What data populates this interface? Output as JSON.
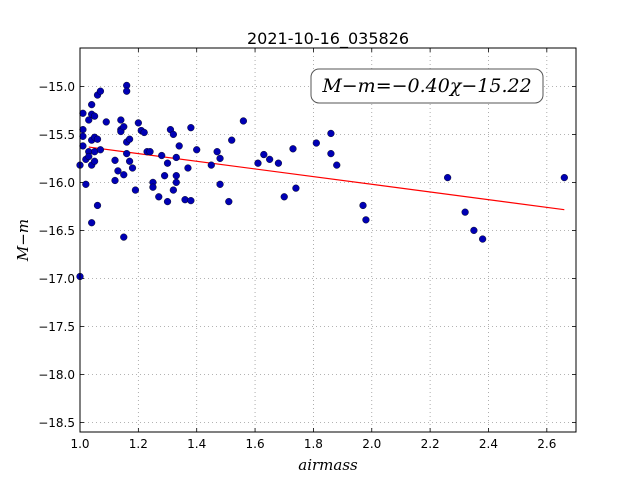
{
  "chart_data": {
    "type": "scatter",
    "title": "2021-10-16_035826",
    "xlabel": "airmass",
    "ylabel": "M−m",
    "xlim": [
      1.0,
      2.7
    ],
    "ylim": [
      -18.6,
      -14.6
    ],
    "y_inverted": true,
    "grid": true,
    "x_ticks": [
      1.0,
      1.2,
      1.4,
      1.6,
      1.8,
      2.0,
      2.2,
      2.4,
      2.6
    ],
    "x_tick_labels": [
      "1.0",
      "1.2",
      "1.4",
      "1.6",
      "1.8",
      "2.0",
      "2.2",
      "2.4",
      "2.6"
    ],
    "y_ticks": [
      -15.0,
      -15.5,
      -16.0,
      -16.5,
      -17.0,
      -17.5,
      -18.0,
      -18.5
    ],
    "y_tick_labels": [
      "−15.0",
      "−15.5",
      "−16.0",
      "−16.5",
      "−17.0",
      "−17.5",
      "−18.0",
      "−18.5"
    ],
    "annotation": "M−m=−0.40χ−15.22",
    "fit": {
      "slope": -0.4,
      "intercept": -15.22,
      "x_range": [
        1.03,
        2.66
      ]
    },
    "colors": {
      "points": "#0000b4",
      "fit_line": "#ff0000",
      "grid": "#9a9a9a"
    },
    "points": [
      [
        1.0,
        -15.82
      ],
      [
        1.0,
        -16.98
      ],
      [
        1.01,
        -15.28
      ],
      [
        1.01,
        -15.45
      ],
      [
        1.01,
        -15.52
      ],
      [
        1.01,
        -15.62
      ],
      [
        1.02,
        -15.76
      ],
      [
        1.02,
        -16.02
      ],
      [
        1.03,
        -15.68
      ],
      [
        1.03,
        -15.73
      ],
      [
        1.03,
        -15.35
      ],
      [
        1.04,
        -15.19
      ],
      [
        1.04,
        -15.29
      ],
      [
        1.04,
        -15.56
      ],
      [
        1.04,
        -15.82
      ],
      [
        1.04,
        -16.42
      ],
      [
        1.05,
        -15.31
      ],
      [
        1.05,
        -15.53
      ],
      [
        1.05,
        -15.68
      ],
      [
        1.05,
        -15.78
      ],
      [
        1.06,
        -15.09
      ],
      [
        1.06,
        -15.55
      ],
      [
        1.06,
        -16.24
      ],
      [
        1.07,
        -15.05
      ],
      [
        1.07,
        -15.66
      ],
      [
        1.09,
        -15.37
      ],
      [
        1.12,
        -15.77
      ],
      [
        1.12,
        -15.98
      ],
      [
        1.13,
        -15.88
      ],
      [
        1.14,
        -15.35
      ],
      [
        1.14,
        -15.45
      ],
      [
        1.14,
        -15.47
      ],
      [
        1.15,
        -15.42
      ],
      [
        1.15,
        -16.57
      ],
      [
        1.15,
        -15.92
      ],
      [
        1.16,
        -14.99
      ],
      [
        1.16,
        -15.05
      ],
      [
        1.16,
        -15.58
      ],
      [
        1.16,
        -15.7
      ],
      [
        1.17,
        -15.55
      ],
      [
        1.17,
        -15.78
      ],
      [
        1.18,
        -15.85
      ],
      [
        1.19,
        -16.08
      ],
      [
        1.2,
        -15.38
      ],
      [
        1.21,
        -15.46
      ],
      [
        1.22,
        -15.48
      ],
      [
        1.23,
        -15.68
      ],
      [
        1.24,
        -15.68
      ],
      [
        1.25,
        -16.0
      ],
      [
        1.25,
        -16.05
      ],
      [
        1.27,
        -16.15
      ],
      [
        1.28,
        -15.72
      ],
      [
        1.29,
        -15.93
      ],
      [
        1.3,
        -16.2
      ],
      [
        1.3,
        -15.8
      ],
      [
        1.31,
        -15.45
      ],
      [
        1.32,
        -15.5
      ],
      [
        1.32,
        -16.08
      ],
      [
        1.33,
        -15.74
      ],
      [
        1.33,
        -15.93
      ],
      [
        1.33,
        -16.0
      ],
      [
        1.34,
        -15.62
      ],
      [
        1.36,
        -16.18
      ],
      [
        1.37,
        -15.85
      ],
      [
        1.38,
        -15.43
      ],
      [
        1.38,
        -16.19
      ],
      [
        1.4,
        -15.66
      ],
      [
        1.45,
        -15.82
      ],
      [
        1.47,
        -15.68
      ],
      [
        1.48,
        -16.02
      ],
      [
        1.48,
        -15.75
      ],
      [
        1.51,
        -16.2
      ],
      [
        1.52,
        -15.56
      ],
      [
        1.56,
        -15.36
      ],
      [
        1.61,
        -15.8
      ],
      [
        1.63,
        -15.71
      ],
      [
        1.65,
        -15.76
      ],
      [
        1.68,
        -15.8
      ],
      [
        1.7,
        -16.15
      ],
      [
        1.73,
        -15.65
      ],
      [
        1.74,
        -16.06
      ],
      [
        1.81,
        -15.59
      ],
      [
        1.86,
        -15.49
      ],
      [
        1.86,
        -15.7
      ],
      [
        1.88,
        -15.82
      ],
      [
        1.97,
        -16.24
      ],
      [
        1.98,
        -16.39
      ],
      [
        2.26,
        -15.95
      ],
      [
        2.32,
        -16.31
      ],
      [
        2.35,
        -16.5
      ],
      [
        2.38,
        -16.59
      ],
      [
        2.66,
        -15.95
      ]
    ]
  }
}
